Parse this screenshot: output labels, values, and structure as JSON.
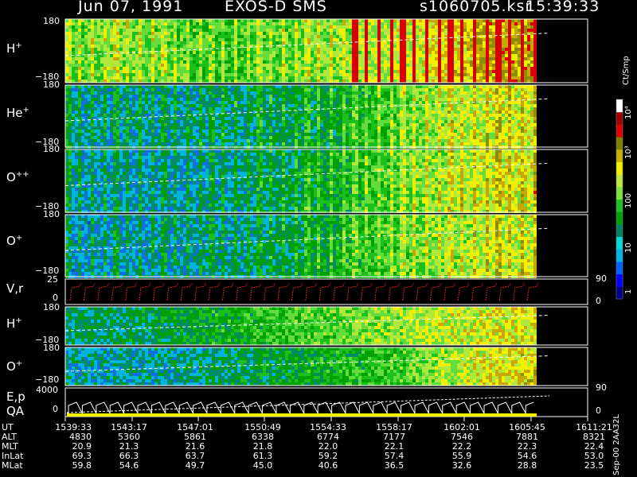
{
  "header": {
    "date": "Jun 07, 1991",
    "instrument": "EXOS-D SMS",
    "file": "s1060705.ksr",
    "time": "15:39:33"
  },
  "panels": [
    {
      "ion": "H",
      "charge": "+",
      "ymax": "180",
      "ymin": "−180"
    },
    {
      "ion": "He",
      "charge": "+",
      "ymax": "180",
      "ymin": "−180"
    },
    {
      "ion": "O",
      "charge": "++",
      "ymax": "180",
      "ymin": "−180"
    },
    {
      "ion": "O",
      "charge": "+",
      "ymax": "180",
      "ymin": "−180"
    },
    {
      "ion": "H",
      "charge": "+",
      "ymax": "180",
      "ymin": "−180"
    },
    {
      "ion": "O",
      "charge": "+",
      "ymax": "180",
      "ymin": "−180"
    }
  ],
  "line_panels": {
    "vr": {
      "label": "V,r",
      "left_top": "25",
      "left_zero": "0",
      "right_top": "90",
      "right_zero": "0"
    },
    "ep": {
      "label1": "E,p",
      "label2": "QA",
      "left_top": "4000",
      "left_zero": "0",
      "right_top": "90",
      "right_zero": "0"
    }
  },
  "colorbar": {
    "unit": "Ct/Smp",
    "ticks": [
      "1",
      "10",
      "100",
      "10³",
      "10⁴"
    ],
    "colors": [
      "#00008b",
      "#0000ff",
      "#0060ff",
      "#00b4e6",
      "#00d8d8",
      "#008060",
      "#00a000",
      "#20c020",
      "#80e040",
      "#c0e840",
      "#f0f000",
      "#c8b000",
      "#808000",
      "#e00000",
      "#a00000",
      "#ffffff"
    ]
  },
  "version": "Sep-00 2AA32L",
  "ephemeris": {
    "row_labels": [
      "UT",
      "ALT",
      "MLT",
      "InLat",
      "MLat"
    ],
    "columns": [
      [
        "1539:33",
        "4830",
        "20.9",
        "69.3",
        "59.8"
      ],
      [
        "1543:17",
        "5360",
        "21.3",
        "66.3",
        "54.6"
      ],
      [
        "1547:01",
        "5861",
        "21.6",
        "63.7",
        "49.7"
      ],
      [
        "1550:49",
        "6338",
        "21.8",
        "61.3",
        "45.0"
      ],
      [
        "1554:33",
        "6774",
        "22.0",
        "59.2",
        "40.6"
      ],
      [
        "1558:17",
        "7177",
        "22.1",
        "57.4",
        "36.5"
      ],
      [
        "1602:01",
        "7546",
        "22.2",
        "55.9",
        "32.6"
      ],
      [
        "1605:45",
        "7881",
        "22.3",
        "54.6",
        "28.8"
      ],
      [
        "1611:21",
        "8321",
        "22.4",
        "53.0",
        "23.5"
      ]
    ]
  },
  "chart_data": {
    "type": "heatmap",
    "x_ticks_ut": [
      "1539:33",
      "1543:17",
      "1547:01",
      "1550:49",
      "1554:33",
      "1558:17",
      "1602:01",
      "1605:45",
      "1611:21"
    ],
    "y_range_pitch_deg": [
      -180,
      180
    ],
    "color_scale": "log",
    "color_range_ct_per_smp": [
      1,
      10000
    ],
    "series": [
      {
        "name": "H+",
        "relative_intensity": [
          0.55,
          0.6,
          0.55,
          0.5,
          0.55,
          0.6,
          0.65,
          0.72,
          0.82,
          0.85
        ]
      },
      {
        "name": "He+",
        "relative_intensity": [
          0.3,
          0.3,
          0.3,
          0.32,
          0.35,
          0.4,
          0.5,
          0.6,
          0.68,
          0.7
        ]
      },
      {
        "name": "O++",
        "relative_intensity": [
          0.28,
          0.28,
          0.27,
          0.3,
          0.35,
          0.42,
          0.52,
          0.62,
          0.68,
          0.7
        ]
      },
      {
        "name": "O+",
        "relative_intensity": [
          0.25,
          0.27,
          0.28,
          0.3,
          0.34,
          0.42,
          0.52,
          0.6,
          0.66,
          0.68
        ]
      },
      {
        "name": "H+",
        "relative_intensity": [
          0.35,
          0.35,
          0.4,
          0.45,
          0.5,
          0.55,
          0.62,
          0.66,
          0.7,
          0.72
        ]
      },
      {
        "name": "O+",
        "relative_intensity": [
          0.3,
          0.3,
          0.3,
          0.35,
          0.4,
          0.45,
          0.5,
          0.6,
          0.72,
          0.75
        ]
      }
    ]
  }
}
